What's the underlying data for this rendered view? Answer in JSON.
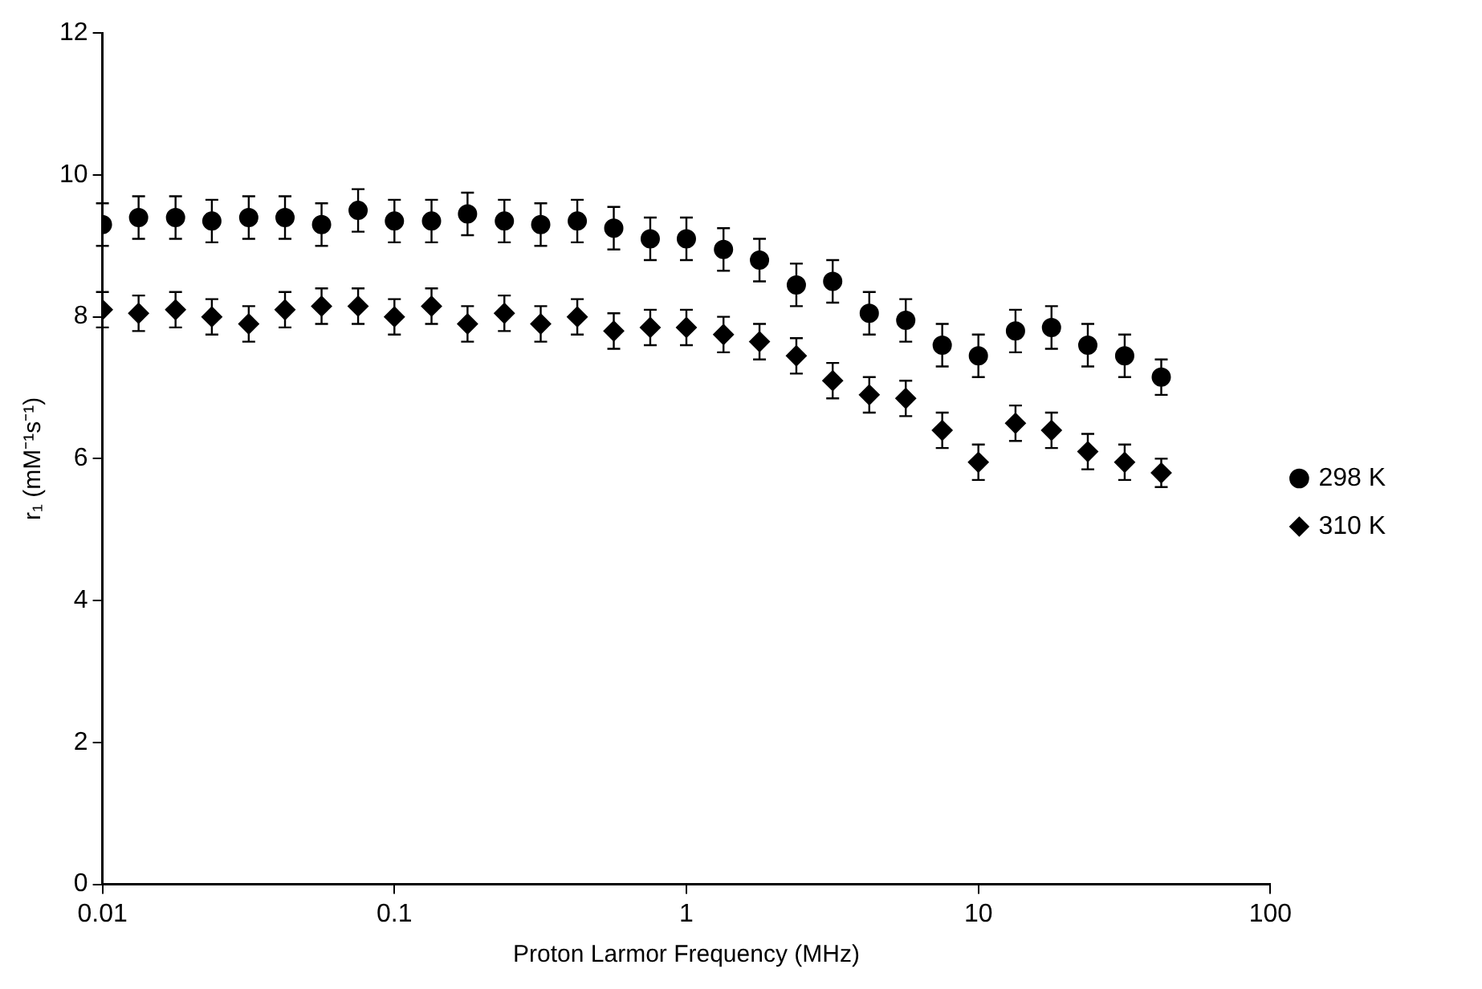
{
  "chart_data": {
    "type": "scatter",
    "xlabel": "Proton Larmor Frequency (MHz)",
    "ylabel": "r₁ (mM⁻¹s⁻¹)",
    "x": [
      0.01,
      0.0133,
      0.0178,
      0.0237,
      0.0317,
      0.0422,
      0.0563,
      0.0751,
      0.1,
      0.134,
      0.178,
      0.238,
      0.317,
      0.423,
      0.564,
      0.752,
      1.0,
      1.34,
      1.78,
      2.38,
      3.17,
      4.23,
      5.64,
      7.52,
      10.0,
      13.4,
      17.8,
      23.7,
      31.7,
      42.3
    ],
    "series": [
      {
        "name": "298 K",
        "color": "#000000",
        "marker": "circle",
        "values": [
          9.3,
          9.4,
          9.4,
          9.35,
          9.4,
          9.4,
          9.3,
          9.5,
          9.35,
          9.35,
          9.45,
          9.35,
          9.3,
          9.35,
          9.25,
          9.1,
          9.1,
          8.95,
          8.8,
          8.45,
          8.5,
          8.05,
          7.95,
          7.6,
          7.45,
          7.8,
          7.85,
          7.6,
          7.45,
          7.15
        ],
        "errors": [
          0.3,
          0.3,
          0.3,
          0.3,
          0.3,
          0.3,
          0.3,
          0.3,
          0.3,
          0.3,
          0.3,
          0.3,
          0.3,
          0.3,
          0.3,
          0.3,
          0.3,
          0.3,
          0.3,
          0.3,
          0.3,
          0.3,
          0.3,
          0.3,
          0.3,
          0.3,
          0.3,
          0.3,
          0.3,
          0.25
        ]
      },
      {
        "name": "310 K",
        "color": "#000000",
        "marker": "diamond",
        "values": [
          8.1,
          8.05,
          8.1,
          8.0,
          7.9,
          8.1,
          8.15,
          8.15,
          8.0,
          8.15,
          7.9,
          8.05,
          7.9,
          8.0,
          7.8,
          7.85,
          7.85,
          7.75,
          7.65,
          7.45,
          7.1,
          6.9,
          6.85,
          6.4,
          5.95,
          6.5,
          6.4,
          6.1,
          5.95,
          5.8
        ],
        "errors": [
          0.25,
          0.25,
          0.25,
          0.25,
          0.25,
          0.25,
          0.25,
          0.25,
          0.25,
          0.25,
          0.25,
          0.25,
          0.25,
          0.25,
          0.25,
          0.25,
          0.25,
          0.25,
          0.25,
          0.25,
          0.25,
          0.25,
          0.25,
          0.25,
          0.25,
          0.25,
          0.25,
          0.25,
          0.25,
          0.2
        ]
      }
    ],
    "log": "x",
    "xlim": [
      0.01,
      100
    ],
    "xticks": [
      0.01,
      0.1,
      1,
      10,
      100
    ],
    "ylim": [
      0,
      12
    ],
    "yticks": [
      0,
      2,
      4,
      6,
      8,
      10,
      12
    ],
    "grid": false,
    "legend": "right"
  }
}
